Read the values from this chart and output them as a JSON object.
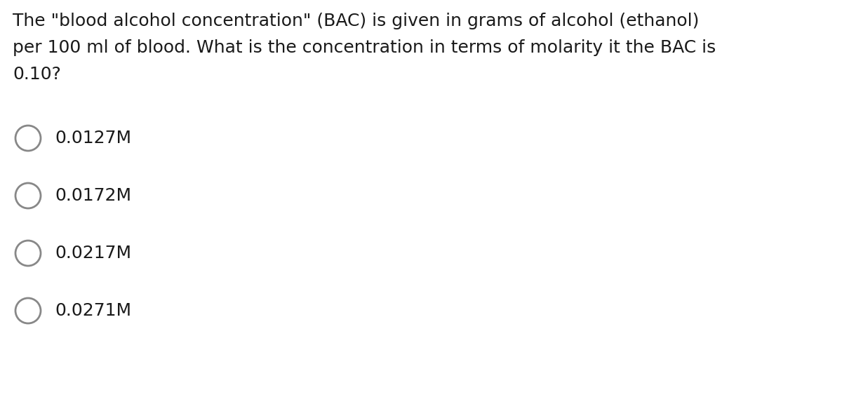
{
  "background_color": "#ffffff",
  "question_text_lines": [
    "The \"blood alcohol concentration\" (BAC) is given in grams of alcohol (ethanol)",
    "per 100 ml of blood. What is the concentration in terms of molarity it the BAC is",
    "0.10?"
  ],
  "options": [
    "0.0127M",
    "0.0172M",
    "0.0217M",
    "0.0271M"
  ],
  "text_color": "#1a1a1a",
  "font_size_question": 18,
  "font_size_options": 18,
  "circle_color": "#888888",
  "circle_linewidth": 2.0
}
